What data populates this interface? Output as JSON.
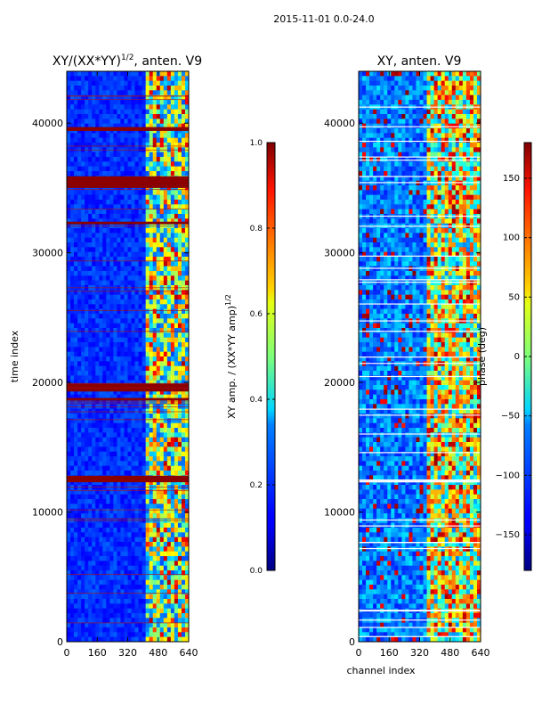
{
  "suptitle": "2015-11-01 0.0-24.0",
  "chart_data": [
    {
      "type": "heatmap",
      "title_main": "XY/(XX*YY)",
      "title_sup": "1/2",
      "title_rest": ", anten. V9",
      "xlabel": "",
      "ylabel": "time index",
      "xlim": [
        0,
        640
      ],
      "ylim": [
        0,
        44000
      ],
      "xticks": [
        0,
        160,
        320,
        480,
        640
      ],
      "yticks": [
        0,
        10000,
        20000,
        30000,
        40000
      ],
      "colorbar": {
        "label_main": "XY amp. / (XX*YY amp)",
        "label_sup": "1/2",
        "range": [
          0.0,
          1.0
        ],
        "ticks": [
          "0.0",
          "0.2",
          "0.4",
          "0.6",
          "0.8",
          "1.0"
        ],
        "tick_values": [
          0.0,
          0.2,
          0.4,
          0.6,
          0.8,
          1.0
        ]
      },
      "flagged_time_bands": [
        [
          35000,
          35900
        ],
        [
          19300,
          19900
        ],
        [
          12300,
          12800
        ],
        [
          39400,
          39700
        ],
        [
          32200,
          32400
        ],
        [
          18600,
          18800
        ]
      ]
    },
    {
      "type": "heatmap",
      "title": "XY, anten. V9",
      "xlabel": "channel index",
      "ylabel": "",
      "xlim": [
        0,
        640
      ],
      "ylim": [
        0,
        44000
      ],
      "xticks": [
        0,
        160,
        320,
        480,
        640
      ],
      "yticks": [
        0,
        10000,
        20000,
        30000,
        40000
      ],
      "colorbar": {
        "label": "phase (deg)",
        "range": [
          -180,
          180
        ],
        "ticks": [
          "150",
          "100",
          "50",
          "0",
          "−50",
          "−100",
          "−150"
        ],
        "tick_values": [
          150,
          100,
          50,
          0,
          -50,
          -100,
          -150
        ]
      }
    }
  ]
}
